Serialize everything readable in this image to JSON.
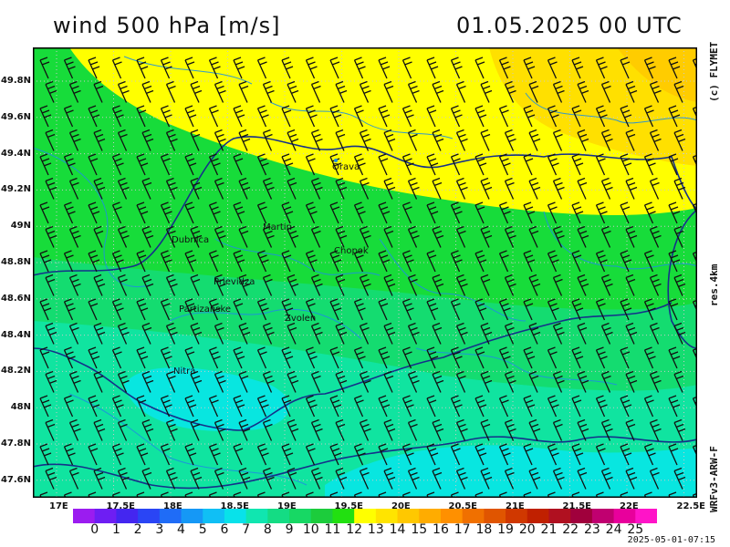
{
  "title_left": "wind 500 hPa [m/s]",
  "title_right": "01.05.2025   00 UTC",
  "side_credit": "(c) FLYMET",
  "side_resolution": "res.4km",
  "side_model": "WRFv3-ARW-F",
  "timestamp": "2025-05-01-07:15",
  "y_axis_labels": [
    "49.8N",
    "49.6N",
    "49.4N",
    "49.2N",
    "49N",
    "48.8N",
    "48.6N",
    "48.4N",
    "48.2N",
    "48N",
    "47.8N",
    "47.6N"
  ],
  "x_axis_labels": [
    "17E",
    "17.5E",
    "18E",
    "18.5E",
    "19E",
    "19.5E",
    "20E",
    "20.5E",
    "21E",
    "21.5E",
    "22E",
    "22.5E"
  ],
  "colorbar": {
    "labels": [
      "0",
      "1",
      "2",
      "3",
      "4",
      "5",
      "6",
      "7",
      "8",
      "9",
      "10",
      "11",
      "12",
      "13",
      "14",
      "15",
      "16",
      "17",
      "18",
      "19",
      "20",
      "21",
      "22",
      "23",
      "24",
      "25"
    ],
    "colors": [
      "#9b1cf0",
      "#6e1ef3",
      "#4426f0",
      "#2a45f5",
      "#1f6cf7",
      "#1598f6",
      "#10bff5",
      "#08e2ea",
      "#10e6b0",
      "#14dc84",
      "#17d864",
      "#1ccc3c",
      "#22e010",
      "#ffff00",
      "#ffe400",
      "#ffc800",
      "#ffac00",
      "#ff9000",
      "#f07000",
      "#e05500",
      "#d03800",
      "#c02000",
      "#b01020",
      "#a0003c",
      "#c00070",
      "#e8009c",
      "#ff14c8"
    ]
  },
  "cities": [
    {
      "name": "Orava"
    },
    {
      "name": "Martin"
    },
    {
      "name": "Dubnica"
    },
    {
      "name": "Chopok"
    },
    {
      "name": "Prievidza"
    },
    {
      "name": "Partizanske"
    },
    {
      "name": "Zvolen"
    },
    {
      "name": "Nitra"
    }
  ]
}
